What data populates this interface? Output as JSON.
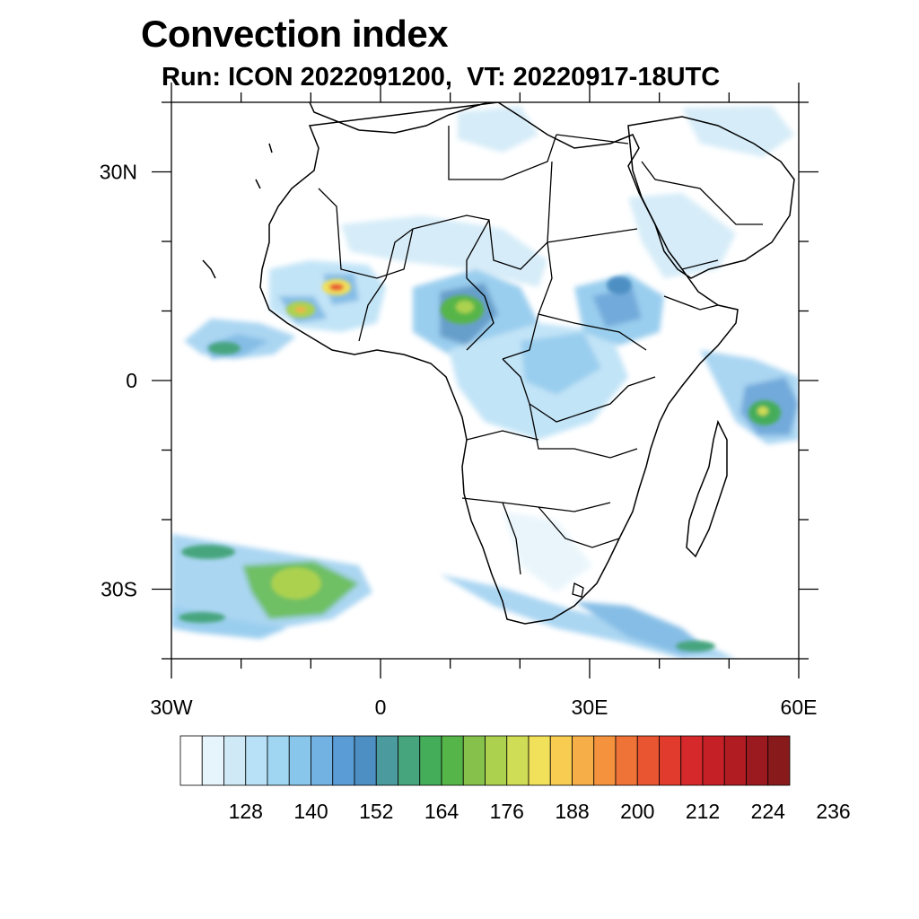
{
  "title": "Convection index",
  "subtitle": "Run: ICON 2022091200,  VT: 20220917-18UTC",
  "map": {
    "lon_range": [
      -30,
      60
    ],
    "lat_range": [
      -40,
      40
    ],
    "lat_labels": [
      {
        "value": 30,
        "label": "30N"
      },
      {
        "value": 0,
        "label": "0"
      },
      {
        "value": -30,
        "label": "30S"
      }
    ],
    "lon_labels": [
      {
        "value": -30,
        "label": "30W"
      },
      {
        "value": 0,
        "label": "0"
      },
      {
        "value": 30,
        "label": "30E"
      },
      {
        "value": 60,
        "label": "60E"
      }
    ]
  },
  "colorbar": {
    "colors": [
      "#ffffff",
      "#e6f4fb",
      "#cfe9f7",
      "#b8e0f6",
      "#a0d6f2",
      "#89c6ec",
      "#71b2e2",
      "#5a9cd5",
      "#4d8fc3",
      "#4a9a9e",
      "#47a57e",
      "#44ad5a",
      "#56b548",
      "#86c14c",
      "#acd14f",
      "#cfdc55",
      "#f0e05a",
      "#f7cc51",
      "#f6ae48",
      "#f4923e",
      "#ef7237",
      "#e95530",
      "#e13b2d",
      "#d5292b",
      "#c52026",
      "#b01c22",
      "#9b1a1f",
      "#881a1c"
    ],
    "tick_labels": [
      "128",
      "140",
      "152",
      "164",
      "176",
      "188",
      "200",
      "212",
      "224",
      "236"
    ]
  },
  "chart_data": {
    "type": "heatmap",
    "title": "Convection index",
    "subtitle": "Run: ICON 2022091200,  VT: 20220917-18UTC",
    "x_range": [
      -30,
      60
    ],
    "y_range": [
      -40,
      40
    ],
    "colorbar_ticks": [
      128,
      140,
      152,
      164,
      176,
      188,
      200,
      212,
      224,
      236
    ],
    "regions": [
      {
        "lon": -26,
        "lat": 8,
        "level": 160
      },
      {
        "lon": -5,
        "lat": 13,
        "level": 200
      },
      {
        "lon": -13,
        "lat": 10,
        "level": 180
      },
      {
        "lon": 12,
        "lat": 10,
        "level": 176
      },
      {
        "lon": 26,
        "lat": 5,
        "level": 150
      },
      {
        "lon": 34,
        "lat": 11,
        "level": 152
      },
      {
        "lon": 54,
        "lat": -4,
        "level": 170
      },
      {
        "lon": -12,
        "lat": -30,
        "level": 176
      },
      {
        "lon": 20,
        "lat": -33,
        "level": 150
      }
    ]
  }
}
